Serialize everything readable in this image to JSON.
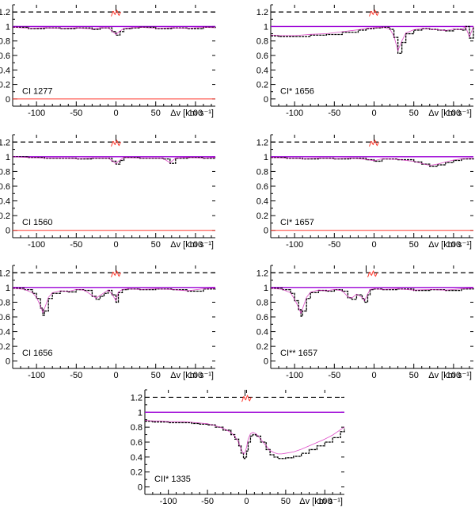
{
  "chart_data": [
    {
      "type": "line",
      "label": "CI 1277",
      "xlabel": "Δv [km s⁻¹]",
      "xlim": [
        -130,
        125
      ],
      "ylim": [
        -0.1,
        1.3
      ],
      "xticks": [
        -100,
        -50,
        0,
        50,
        100
      ],
      "yticks": [
        0,
        0.2,
        0.4,
        0.6,
        0.8,
        1,
        1.2
      ],
      "xtick_labels": [
        "-100",
        "-50",
        "0",
        "50",
        "100"
      ],
      "ytick_labels": [
        "0",
        "0.2",
        "0.4",
        "0.6",
        "0.8",
        "1",
        "1.2"
      ],
      "continuum": 1.0,
      "reference_level": 1.2,
      "zero_level_line": true,
      "top_marks": [
        0
      ],
      "residual_center": 0,
      "series": [
        {
          "x": [
            -130,
            -110,
            -90,
            -70,
            -50,
            -30,
            -20,
            -10,
            -5,
            0,
            5,
            10,
            20,
            30,
            50,
            70,
            90,
            110,
            125
          ],
          "values": [
            0.99,
            0.97,
            0.98,
            0.97,
            0.98,
            0.96,
            0.98,
            0.98,
            0.93,
            0.88,
            0.93,
            0.97,
            0.98,
            0.99,
            0.97,
            0.98,
            0.97,
            0.99,
            0.98
          ]
        }
      ]
    },
    {
      "type": "line",
      "label": "CI* 1656",
      "xlabel": "Δv [km s⁻¹]",
      "xlim": [
        -130,
        125
      ],
      "ylim": [
        -0.1,
        1.3
      ],
      "xticks": [
        -100,
        -50,
        0,
        50,
        100
      ],
      "yticks": [
        0,
        0.2,
        0.4,
        0.6,
        0.8,
        1,
        1.2
      ],
      "xtick_labels": [
        "-100",
        "-50",
        "0",
        "50",
        "100"
      ],
      "ytick_labels": [
        "0",
        "0.2",
        "0.4",
        "0.6",
        "0.8",
        "1",
        "1.2"
      ],
      "continuum": 1.0,
      "reference_level": 1.2,
      "zero_level_line": false,
      "top_marks": [
        0
      ],
      "residual_center": 0,
      "series": [
        {
          "x": [
            -130,
            -120,
            -100,
            -80,
            -60,
            -40,
            -20,
            -10,
            0,
            10,
            20,
            25,
            30,
            35,
            40,
            50,
            60,
            70,
            80,
            90,
            100,
            110,
            115,
            120,
            125
          ],
          "values": [
            0.87,
            0.86,
            0.86,
            0.88,
            0.89,
            0.92,
            0.95,
            0.97,
            0.98,
            0.99,
            0.96,
            0.85,
            0.63,
            0.78,
            0.9,
            0.95,
            0.97,
            0.96,
            0.95,
            0.94,
            0.96,
            0.95,
            1.0,
            0.84,
            1.0
          ]
        }
      ]
    },
    {
      "type": "line",
      "label": "CI 1560",
      "xlabel": "Δv [km s⁻¹]",
      "xlim": [
        -130,
        125
      ],
      "ylim": [
        -0.1,
        1.3
      ],
      "xticks": [
        -100,
        -50,
        0,
        50,
        100
      ],
      "yticks": [
        0,
        0.2,
        0.4,
        0.6,
        0.8,
        1,
        1.2
      ],
      "xtick_labels": [
        "-100",
        "-50",
        "0",
        "50",
        "100"
      ],
      "ytick_labels": [
        "0",
        "0.2",
        "0.4",
        "0.6",
        "0.8",
        "1",
        "1.2"
      ],
      "continuum": 1.0,
      "reference_level": 1.2,
      "zero_level_line": true,
      "top_marks": [
        0
      ],
      "residual_center": 0,
      "series": [
        {
          "x": [
            -130,
            -110,
            -90,
            -70,
            -50,
            -30,
            -10,
            -5,
            0,
            5,
            10,
            30,
            50,
            60,
            68,
            75,
            90,
            110,
            125
          ],
          "values": [
            1.0,
            0.99,
            0.98,
            0.98,
            0.97,
            0.98,
            0.98,
            0.94,
            0.9,
            0.95,
            0.99,
            0.98,
            0.98,
            0.97,
            0.91,
            0.98,
            0.99,
            0.98,
            0.99
          ]
        }
      ]
    },
    {
      "type": "line",
      "label": "CI* 1657",
      "xlabel": "Δv [km s⁻¹]",
      "xlim": [
        -130,
        125
      ],
      "ylim": [
        -0.1,
        1.3
      ],
      "xticks": [
        -100,
        -50,
        0,
        50,
        100
      ],
      "yticks": [
        0,
        0.2,
        0.4,
        0.6,
        0.8,
        1,
        1.2
      ],
      "xtick_labels": [
        "-100",
        "-50",
        "0",
        "50",
        "100"
      ],
      "ytick_labels": [
        "0",
        "0.2",
        "0.4",
        "0.6",
        "0.8",
        "1",
        "1.2"
      ],
      "continuum": 1.0,
      "reference_level": 1.2,
      "zero_level_line": true,
      "top_marks": [
        0
      ],
      "residual_center": 0,
      "series": [
        {
          "x": [
            -130,
            -110,
            -90,
            -70,
            -50,
            -30,
            -10,
            0,
            10,
            30,
            50,
            60,
            70,
            80,
            90,
            100,
            110,
            125
          ],
          "values": [
            0.99,
            0.98,
            0.97,
            0.98,
            0.97,
            0.98,
            0.96,
            0.94,
            0.97,
            0.96,
            0.93,
            0.9,
            0.87,
            0.89,
            0.92,
            0.95,
            0.97,
            0.98
          ]
        }
      ]
    },
    {
      "type": "line",
      "label": "CI 1656",
      "xlabel": "Δv [km s⁻¹]",
      "xlim": [
        -130,
        125
      ],
      "ylim": [
        -0.1,
        1.3
      ],
      "xticks": [
        -100,
        -50,
        0,
        50,
        100
      ],
      "yticks": [
        0,
        0.2,
        0.4,
        0.6,
        0.8,
        1,
        1.2
      ],
      "xtick_labels": [
        "-100",
        "-50",
        "0",
        "50",
        "100"
      ],
      "ytick_labels": [
        "0",
        "0.2",
        "0.4",
        "0.6",
        "0.8",
        "1",
        "1.2"
      ],
      "continuum": 1.0,
      "reference_level": 1.2,
      "zero_level_line": false,
      "top_marks": [
        0
      ],
      "residual_center": 0,
      "series": [
        {
          "x": [
            -130,
            -115,
            -105,
            -100,
            -95,
            -92,
            -90,
            -85,
            -80,
            -70,
            -60,
            -50,
            -40,
            -30,
            -25,
            -20,
            -15,
            -10,
            -5,
            0,
            3,
            8,
            15,
            30,
            50,
            70,
            90,
            110,
            125
          ],
          "values": [
            0.99,
            0.97,
            0.92,
            0.85,
            0.72,
            0.62,
            0.68,
            0.85,
            0.92,
            0.95,
            0.94,
            0.97,
            0.96,
            0.88,
            0.84,
            0.88,
            0.92,
            0.96,
            0.9,
            0.8,
            0.93,
            0.97,
            0.98,
            0.97,
            0.98,
            0.97,
            0.95,
            0.98,
            0.99
          ]
        }
      ]
    },
    {
      "type": "line",
      "label": "CI** 1657",
      "xlabel": "Δv [km s⁻¹]",
      "xlim": [
        -130,
        125
      ],
      "ylim": [
        -0.1,
        1.3
      ],
      "xticks": [
        -100,
        -50,
        0,
        50,
        100
      ],
      "yticks": [
        0,
        0.2,
        0.4,
        0.6,
        0.8,
        1,
        1.2
      ],
      "xtick_labels": [
        "-100",
        "-50",
        "0",
        "50",
        "100"
      ],
      "ytick_labels": [
        "0",
        "0.2",
        "0.4",
        "0.6",
        "0.8",
        "1",
        "1.2"
      ],
      "continuum": 1.0,
      "reference_level": 1.2,
      "zero_level_line": false,
      "top_marks": [
        -10
      ],
      "residual_center": -2,
      "series": [
        {
          "x": [
            -130,
            -115,
            -105,
            -100,
            -95,
            -92,
            -90,
            -85,
            -80,
            -70,
            -60,
            -50,
            -40,
            -33,
            -28,
            -22,
            -15,
            -12,
            -8,
            -5,
            0,
            10,
            30,
            50,
            70,
            90,
            110,
            125
          ],
          "values": [
            0.99,
            0.97,
            0.92,
            0.82,
            0.7,
            0.61,
            0.68,
            0.85,
            0.93,
            0.96,
            0.95,
            0.97,
            0.95,
            0.86,
            0.84,
            0.9,
            0.85,
            0.8,
            0.9,
            0.97,
            0.98,
            0.97,
            0.98,
            0.96,
            0.97,
            0.96,
            0.98,
            0.99
          ]
        }
      ]
    },
    {
      "type": "line",
      "label": "CII* 1335",
      "xlabel": "Δv [km s⁻¹]",
      "xlim": [
        -130,
        125
      ],
      "ylim": [
        -0.1,
        1.3
      ],
      "xticks": [
        -100,
        -50,
        0,
        50,
        100
      ],
      "yticks": [
        0,
        0.2,
        0.4,
        0.6,
        0.8,
        1,
        1.2
      ],
      "xtick_labels": [
        "-100",
        "-50",
        "0",
        "50",
        "100"
      ],
      "ytick_labels": [
        "0",
        "0.2",
        "0.4",
        "0.6",
        "0.8",
        "1",
        "1.2"
      ],
      "continuum": 1.0,
      "reference_level": 1.2,
      "zero_level_line": false,
      "top_marks": [
        -2
      ],
      "residual_center": 0,
      "series": [
        {
          "x": [
            -130,
            -120,
            -110,
            -100,
            -90,
            -80,
            -70,
            -60,
            -50,
            -40,
            -30,
            -20,
            -15,
            -10,
            -7,
            -4,
            -2,
            0,
            2,
            5,
            8,
            12,
            18,
            25,
            30,
            35,
            40,
            45,
            50,
            60,
            70,
            80,
            90,
            100,
            110,
            120,
            125
          ],
          "values": [
            0.88,
            0.87,
            0.87,
            0.86,
            0.86,
            0.86,
            0.85,
            0.84,
            0.83,
            0.8,
            0.76,
            0.7,
            0.64,
            0.55,
            0.45,
            0.38,
            0.4,
            0.48,
            0.6,
            0.68,
            0.7,
            0.68,
            0.6,
            0.5,
            0.43,
            0.4,
            0.38,
            0.38,
            0.39,
            0.41,
            0.45,
            0.5,
            0.55,
            0.6,
            0.66,
            0.74,
            0.78
          ]
        }
      ]
    }
  ]
}
